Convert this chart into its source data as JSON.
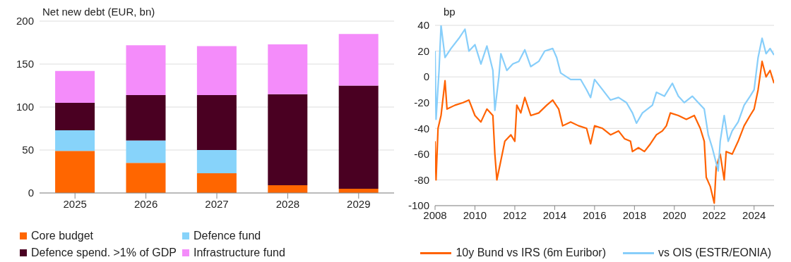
{
  "chart_data": [
    {
      "type": "bar",
      "ylabel": "Net new debt (EUR, bn)",
      "categories": [
        "2025",
        "2026",
        "2027",
        "2028",
        "2029"
      ],
      "stacked": true,
      "ylim": [
        0,
        200
      ],
      "yticks": [
        0,
        50,
        100,
        150,
        200
      ],
      "grid": "y",
      "legend": "bottom",
      "series": [
        {
          "name": "Core budget",
          "color": "#ff6600",
          "values": [
            49,
            35,
            23,
            9,
            5
          ]
        },
        {
          "name": "Defence fund",
          "color": "#87d3fa",
          "values": [
            24,
            26,
            27,
            0,
            0
          ]
        },
        {
          "name": "Defence spend. >1% of GDP",
          "color": "#4a0022",
          "values": [
            32,
            53,
            64,
            106,
            120
          ]
        },
        {
          "name": "Infrastructure fund",
          "color": "#f48cfa",
          "values": [
            37,
            58,
            57,
            58,
            60
          ]
        }
      ]
    },
    {
      "type": "line",
      "ylabel": "bp",
      "xlim": [
        2008,
        2025
      ],
      "xticks": [
        2008,
        2010,
        2012,
        2014,
        2016,
        2018,
        2020,
        2022,
        2024
      ],
      "ylim": [
        -100,
        40
      ],
      "yticks": [
        -100,
        -80,
        -60,
        -40,
        -20,
        0,
        20,
        40
      ],
      "grid": "y",
      "legend": "bottom",
      "series": [
        {
          "name": "10y Bund vs IRS (6m Euribor)",
          "color": "#ff6200",
          "x": [
            2008.0,
            2008.05,
            2008.15,
            2008.3,
            2008.5,
            2008.6,
            2009.0,
            2009.4,
            2009.7,
            2010.0,
            2010.3,
            2010.6,
            2010.9,
            2011.0,
            2011.1,
            2011.3,
            2011.5,
            2011.8,
            2012.0,
            2012.1,
            2012.3,
            2012.5,
            2012.8,
            2013.2,
            2013.6,
            2013.9,
            2014.2,
            2014.4,
            2014.8,
            2015.2,
            2015.6,
            2015.8,
            2016.0,
            2016.4,
            2016.8,
            2017.2,
            2017.5,
            2017.8,
            2017.9,
            2018.2,
            2018.5,
            2018.8,
            2019.1,
            2019.4,
            2019.6,
            2019.8,
            2020.2,
            2020.6,
            2021.0,
            2021.3,
            2021.5,
            2021.6,
            2021.8,
            2022.0,
            2022.1,
            2022.3,
            2022.5,
            2022.6,
            2022.9,
            2023.2,
            2023.5,
            2023.8,
            2024.0,
            2024.2,
            2024.4,
            2024.6,
            2024.8,
            2025.0
          ],
          "values": [
            -50,
            -80,
            -40,
            -30,
            -3,
            -25,
            -22,
            -20,
            -18,
            -30,
            -35,
            -25,
            -30,
            -60,
            -80,
            -65,
            -50,
            -45,
            -50,
            -22,
            -28,
            -16,
            -30,
            -28,
            -22,
            -18,
            -25,
            -38,
            -35,
            -38,
            -40,
            -52,
            -38,
            -40,
            -45,
            -42,
            -48,
            -50,
            -58,
            -55,
            -58,
            -52,
            -45,
            -42,
            -38,
            -28,
            -30,
            -33,
            -30,
            -40,
            -50,
            -78,
            -85,
            -98,
            -70,
            -60,
            -80,
            -58,
            -60,
            -50,
            -38,
            -30,
            -25,
            -10,
            12,
            0,
            5,
            -5
          ]
        },
        {
          "name": "vs OIS (ESTR/EONIA)",
          "color": "#87cefa",
          "x": [
            2008.0,
            2008.05,
            2008.2,
            2008.3,
            2008.5,
            2008.8,
            2009.2,
            2009.5,
            2009.7,
            2010.0,
            2010.3,
            2010.6,
            2010.9,
            2011.0,
            2011.2,
            2011.3,
            2011.6,
            2011.9,
            2012.2,
            2012.5,
            2012.8,
            2013.2,
            2013.5,
            2013.9,
            2014.1,
            2014.3,
            2014.8,
            2015.3,
            2015.6,
            2015.8,
            2016.0,
            2016.4,
            2016.8,
            2017.2,
            2017.6,
            2017.9,
            2018.1,
            2018.4,
            2018.9,
            2019.1,
            2019.5,
            2019.9,
            2020.2,
            2020.5,
            2020.9,
            2021.2,
            2021.5,
            2021.7,
            2021.9,
            2022.2,
            2022.3,
            2022.5,
            2022.7,
            2022.9,
            2023.2,
            2023.5,
            2023.8,
            2024.0,
            2024.2,
            2024.4,
            2024.6,
            2024.8,
            2025.0
          ],
          "values": [
            20,
            -33,
            5,
            40,
            15,
            22,
            30,
            37,
            20,
            25,
            10,
            24,
            5,
            -26,
            0,
            18,
            5,
            10,
            12,
            21,
            8,
            12,
            20,
            22,
            15,
            3,
            -2,
            -2,
            -10,
            -16,
            -2,
            -10,
            -18,
            -16,
            -20,
            -28,
            -36,
            -28,
            -22,
            -12,
            -15,
            -5,
            -15,
            -20,
            -15,
            -20,
            -25,
            -45,
            -55,
            -73,
            -50,
            -30,
            -50,
            -42,
            -35,
            -22,
            -15,
            -10,
            15,
            30,
            18,
            22,
            17
          ]
        }
      ]
    }
  ]
}
